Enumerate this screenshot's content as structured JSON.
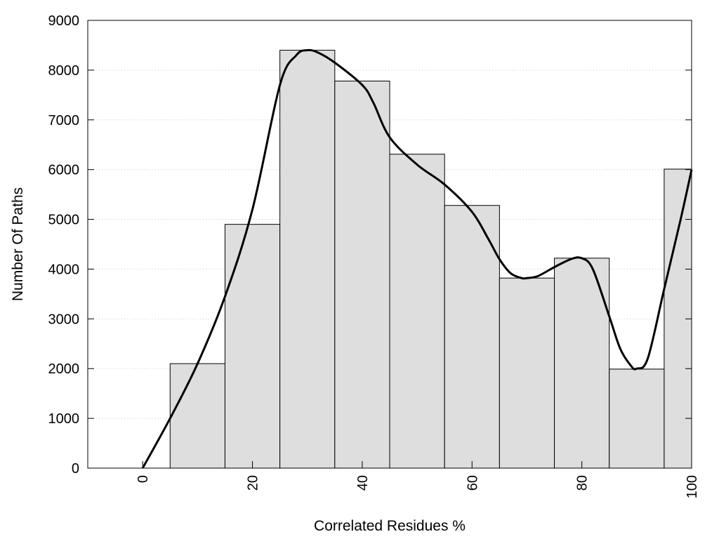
{
  "chart_data": {
    "type": "bar",
    "title": "",
    "xlabel": "Correlated Residues %",
    "ylabel": "Number Of Paths",
    "xlim": [
      -10,
      100
    ],
    "ylim": [
      0,
      9000
    ],
    "xticks": [
      0,
      20,
      40,
      60,
      80,
      100
    ],
    "yticks": [
      0,
      1000,
      2000,
      3000,
      4000,
      5000,
      6000,
      7000,
      8000,
      9000
    ],
    "grid": "horizontal-dotted",
    "bar_color": "#dedede",
    "bar_edge_color": "#000000",
    "bars": [
      {
        "x0": 5,
        "x1": 15,
        "value": 2100
      },
      {
        "x0": 15,
        "x1": 25,
        "value": 4900
      },
      {
        "x0": 25,
        "x1": 35,
        "value": 8400
      },
      {
        "x0": 35,
        "x1": 45,
        "value": 7780
      },
      {
        "x0": 45,
        "x1": 55,
        "value": 6310
      },
      {
        "x0": 55,
        "x1": 65,
        "value": 5280
      },
      {
        "x0": 65,
        "x1": 75,
        "value": 3820
      },
      {
        "x0": 75,
        "x1": 85,
        "value": 4220
      },
      {
        "x0": 85,
        "x1": 95,
        "value": 1990
      },
      {
        "x0": 95,
        "x1": 100,
        "value": 6010
      }
    ],
    "curve": {
      "x": [
        0,
        5,
        10,
        15,
        20,
        25,
        28,
        30,
        32,
        35,
        40,
        42,
        45,
        50,
        55,
        60,
        63,
        65,
        67,
        69,
        70,
        72,
        75,
        78,
        80,
        82,
        85,
        87,
        89,
        90,
        92,
        95,
        98,
        100
      ],
      "y": [
        0,
        1000,
        2100,
        3450,
        5200,
        7700,
        8300,
        8400,
        8350,
        8150,
        7700,
        7350,
        6650,
        6100,
        5700,
        5150,
        4600,
        4200,
        3920,
        3820,
        3820,
        3860,
        4040,
        4200,
        4220,
        4000,
        3050,
        2400,
        2050,
        2000,
        2200,
        3600,
        5000,
        6000
      ]
    }
  }
}
